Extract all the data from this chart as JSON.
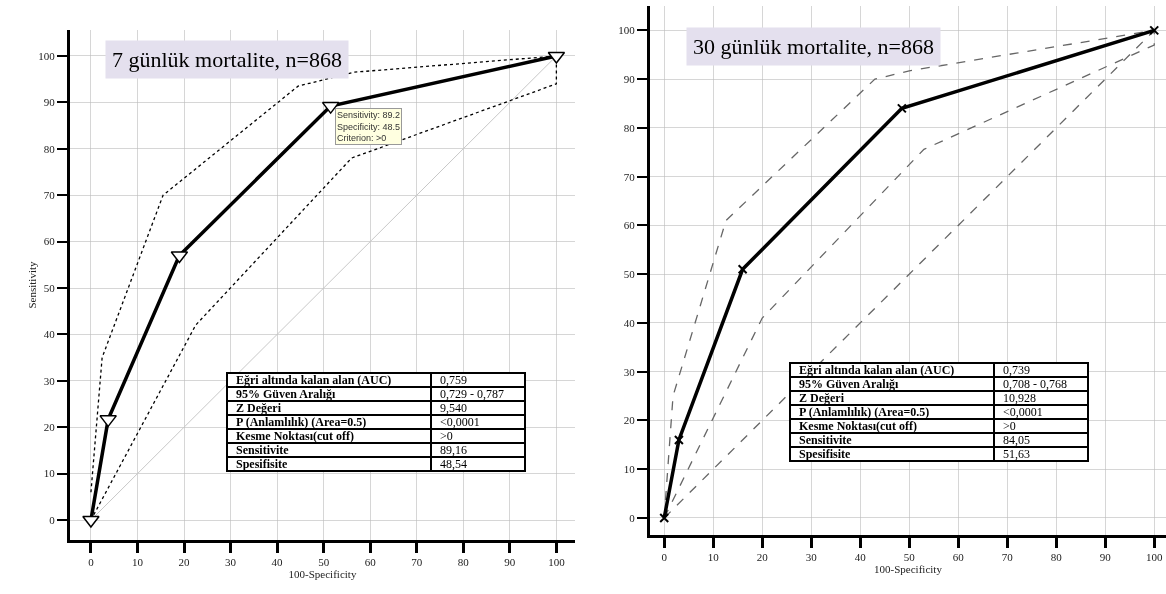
{
  "chart_data": [
    {
      "type": "line",
      "title": "7 günlük mortalite, n=868",
      "xlabel": "100-Specificity",
      "ylabel": "Sensitivity",
      "xlim": [
        -4.5,
        104
      ],
      "ylim": [
        -4.3,
        105.6
      ],
      "xticks": [
        0,
        10,
        20,
        30,
        40,
        50,
        60,
        70,
        80,
        90,
        100
      ],
      "yticks": [
        0,
        10,
        20,
        30,
        40,
        50,
        60,
        70,
        80,
        90,
        100
      ],
      "grid": true,
      "series": [
        {
          "color": "#000000",
          "x": [
            0,
            3.7,
            19,
            51.5,
            100
          ],
          "values": [
            0,
            21.7,
            57,
            89.2,
            100
          ],
          "line_style": "solid",
          "marker": "triangle"
        },
        {
          "color": "#c8c8c8",
          "x": [
            0,
            100
          ],
          "values": [
            0,
            100
          ],
          "line_style": "solid",
          "marker": "none"
        },
        {
          "color": "#000000",
          "x": [
            0,
            2.4,
            15.5,
            44.5,
            56.5,
            100
          ],
          "values": [
            6,
            35,
            70,
            93.5,
            96.5,
            100
          ],
          "line_style": "dotted",
          "marker": "none"
        },
        {
          "color": "#000000",
          "x": [
            0,
            22.5,
            56,
            100,
            100
          ],
          "values": [
            0,
            42,
            78,
            94,
            100
          ],
          "line_style": "dotted",
          "marker": "none"
        }
      ],
      "annotations": [
        "Eğri altında kalan alan (AUC)",
        "0,759",
        "95% Güven Aralığı",
        "0,729 - 0,787",
        "Z Değeri",
        "9,540",
        "P (Anlamlılık)  (Area=0.5)",
        "<0,0001",
        "Kesme Noktası(cut off)",
        ">0",
        "Sensitivite",
        "89,16",
        "Spesifisite",
        "48,54",
        {
          "text": "Sensitivity: 89.2\nSpecificity: 48.5\nCriterion: >0",
          "x": 51.5,
          "y": 89.2
        }
      ]
    },
    {
      "type": "line",
      "title": "30 günlük mortalite, n=868",
      "xlabel": "100-Specificity",
      "xlim": [
        -2.9,
        102.4
      ],
      "ylim": [
        -3.5,
        105
      ],
      "xticks": [
        0,
        10,
        20,
        30,
        40,
        50,
        60,
        70,
        80,
        90,
        100
      ],
      "yticks": [
        0,
        10,
        20,
        30,
        40,
        50,
        60,
        70,
        80,
        90,
        100
      ],
      "grid": true,
      "series": [
        {
          "color": "#000000",
          "x": [
            0,
            3,
            16,
            48.5,
            100
          ],
          "values": [
            0,
            16,
            51,
            84,
            100
          ],
          "line_style": "solid",
          "marker": "cross"
        },
        {
          "color": "#666666",
          "x": [
            0,
            100
          ],
          "values": [
            0,
            100
          ],
          "line_style": "dashed",
          "marker": "none"
        },
        {
          "color": "#666666",
          "x": [
            0,
            1.8,
            12.6,
            43,
            50,
            100
          ],
          "values": [
            0,
            25,
            61,
            90,
            91.7,
            100
          ],
          "line_style": "dashed",
          "marker": "none"
        },
        {
          "color": "#666666",
          "x": [
            0,
            20,
            53,
            100,
            100
          ],
          "values": [
            0,
            41,
            75.6,
            97,
            100
          ],
          "line_style": "dashed",
          "marker": "none"
        }
      ],
      "annotations": [
        "Eğri altında kalan alan (AUC)",
        "0,739",
        "95% Güven Aralığı",
        "0,708 - 0,768",
        "Z Değeri",
        "10,928",
        "P (Anlamlılık)  (Area=0.5)",
        "<0,0001",
        "Kesme Noktası(cut off)",
        ">0",
        "Sensitivite",
        "84,05",
        "Spesifisite",
        "51,63"
      ]
    }
  ]
}
